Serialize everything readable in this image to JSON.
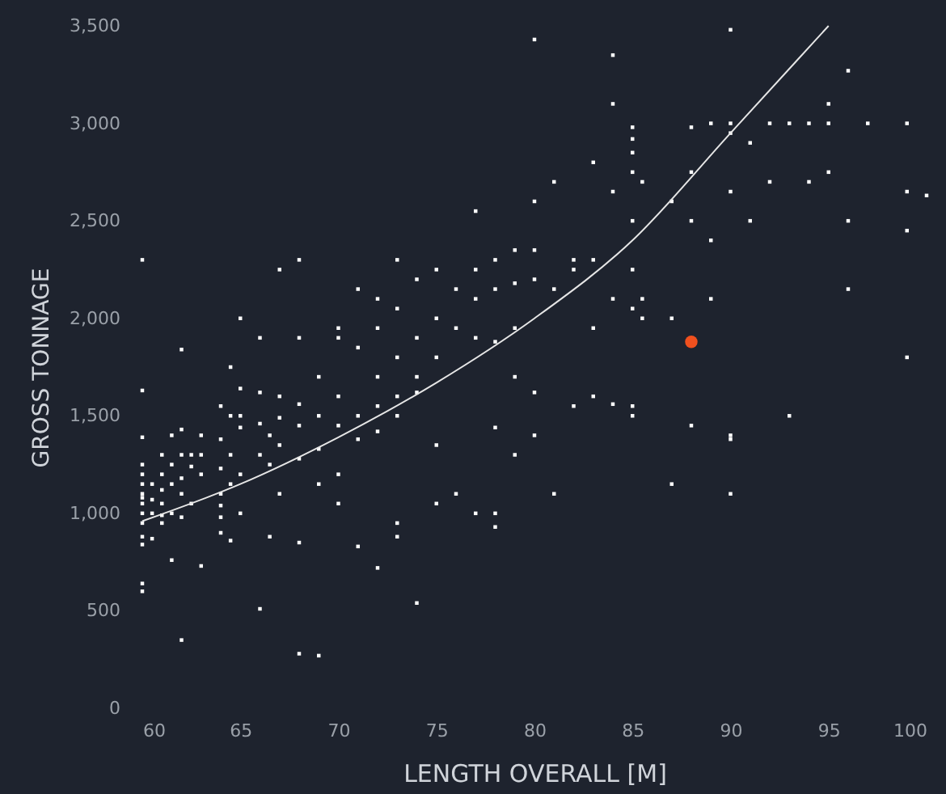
{
  "chart_data": {
    "type": "scatter",
    "xlabel": "LENGTH OVERALL [M]",
    "ylabel": "GROSS TONNAGE",
    "xlim": [
      60,
      100
    ],
    "xticks": [
      60,
      65,
      70,
      75,
      80,
      85,
      90,
      95,
      100
    ],
    "ylim": [
      0,
      3500
    ],
    "yticks": [
      0,
      {
        "value": 500,
        "label": "500"
      },
      {
        "value": 1000,
        "label": "1,000"
      },
      {
        "value": 1500,
        "label": "1,500"
      },
      {
        "value": 2000,
        "label": "2,000"
      },
      {
        "value": 2500,
        "label": "2,500"
      },
      {
        "value": 3000,
        "label": "3,000"
      },
      {
        "value": 3500,
        "label": "3,500"
      }
    ],
    "grid": false,
    "series": [
      {
        "marker": "square",
        "color": "#ffffff",
        "x": [
          60,
          60,
          60,
          60,
          60,
          60,
          60,
          60,
          60,
          60,
          60,
          60,
          60,
          60,
          60,
          60.5,
          60.5,
          60.5,
          60.5,
          61,
          61,
          61,
          61,
          61,
          61,
          61.5,
          61.5,
          61.5,
          61.5,
          61.5,
          62,
          62,
          62,
          62,
          62,
          62,
          62,
          62.5,
          62.5,
          62.5,
          63,
          63,
          63,
          63,
          64,
          64,
          64,
          64,
          64,
          64,
          64,
          64.5,
          64.5,
          64.5,
          64.5,
          64.5,
          65,
          65,
          65,
          65,
          65,
          65,
          66,
          66,
          66,
          66,
          66,
          66.5,
          66.5,
          66.5,
          67,
          67,
          67,
          67,
          67,
          68,
          68,
          68,
          68,
          68,
          68,
          68,
          69,
          69,
          69,
          69,
          69,
          70,
          70,
          70,
          70,
          70,
          70,
          71,
          71,
          71,
          71,
          71,
          72,
          72,
          72,
          72,
          72,
          72,
          73,
          73,
          73,
          73,
          73,
          73,
          73,
          74,
          74,
          74,
          74,
          74,
          75,
          75,
          75,
          75,
          75,
          76,
          76,
          76,
          77,
          77,
          77,
          77,
          77,
          78,
          78,
          78,
          78,
          78,
          78,
          79,
          79,
          79,
          79,
          79,
          80,
          80,
          80,
          80,
          80,
          80,
          81,
          81,
          81,
          82,
          82,
          82,
          83,
          83,
          83,
          83,
          84,
          84,
          84,
          84,
          84,
          85,
          85,
          85,
          85,
          85,
          85,
          85,
          85,
          85,
          85.5,
          85.5,
          85.5,
          87,
          87,
          87,
          88,
          88,
          88,
          88,
          89,
          89,
          89,
          90,
          90,
          90,
          90,
          90,
          90,
          90,
          91,
          91,
          92,
          92,
          93,
          93,
          94,
          94,
          95,
          95,
          95,
          96,
          96,
          96,
          97,
          99,
          99,
          99,
          99,
          100
        ],
        "values": [
          2300,
          1630,
          1390,
          1250,
          1200,
          1150,
          1100,
          1080,
          1050,
          1000,
          950,
          880,
          840,
          640,
          600,
          1150,
          1070,
          1000,
          870,
          1300,
          1200,
          1120,
          1050,
          990,
          950,
          1400,
          1250,
          1150,
          1000,
          760,
          1840,
          1430,
          1300,
          1180,
          1100,
          980,
          350,
          1300,
          1240,
          1050,
          1400,
          1300,
          1200,
          730,
          1550,
          1380,
          1230,
          1100,
          1040,
          980,
          900,
          1750,
          1500,
          1300,
          1150,
          860,
          2000,
          1640,
          1500,
          1440,
          1200,
          1000,
          1900,
          1620,
          1460,
          1300,
          510,
          1400,
          1250,
          880,
          2250,
          1600,
          1490,
          1350,
          1100,
          2300,
          1900,
          1560,
          1450,
          1280,
          850,
          280,
          1700,
          1500,
          1330,
          1150,
          270,
          1950,
          1900,
          1600,
          1450,
          1200,
          1050,
          2150,
          1850,
          1500,
          1380,
          830,
          2100,
          1950,
          1700,
          1550,
          1420,
          720,
          2300,
          2050,
          1800,
          1600,
          1500,
          950,
          880,
          2200,
          1900,
          1700,
          1620,
          540,
          2250,
          2000,
          1800,
          1350,
          1050,
          2150,
          1950,
          1100,
          2550,
          2250,
          2100,
          1900,
          1000,
          2300,
          2150,
          1880,
          1440,
          1000,
          930,
          2350,
          2180,
          1950,
          1700,
          1300,
          3430,
          2600,
          2350,
          2200,
          1620,
          1400,
          2700,
          2150,
          1100,
          2300,
          2250,
          1550,
          2800,
          2300,
          1950,
          1600,
          3350,
          3100,
          2650,
          2100,
          1560,
          2980,
          2920,
          2850,
          2750,
          2500,
          2250,
          2050,
          1550,
          1500,
          2700,
          2100,
          2000,
          2600,
          2000,
          1150,
          2750,
          2980,
          2500,
          1450,
          3000,
          2400,
          2100,
          3480,
          3000,
          2950,
          2650,
          1400,
          1380,
          1100,
          2900,
          2500,
          3000,
          2700,
          3000,
          1500,
          3000,
          2700,
          3100,
          3000,
          2750,
          3270,
          2500,
          2150,
          3000,
          3000,
          2650,
          2450,
          1800,
          2630
        ]
      },
      {
        "type": "line",
        "marker": "none",
        "color": "#e6e6e6",
        "x": [
          60,
          65,
          70,
          75,
          80,
          85,
          90,
          95
        ],
        "values": [
          960,
          1150,
          1390,
          1670,
          2000,
          2400,
          2950,
          3500
        ]
      },
      {
        "marker": "circle",
        "color": "#f0501e",
        "x": [
          88
        ],
        "values": [
          1880
        ]
      }
    ]
  }
}
